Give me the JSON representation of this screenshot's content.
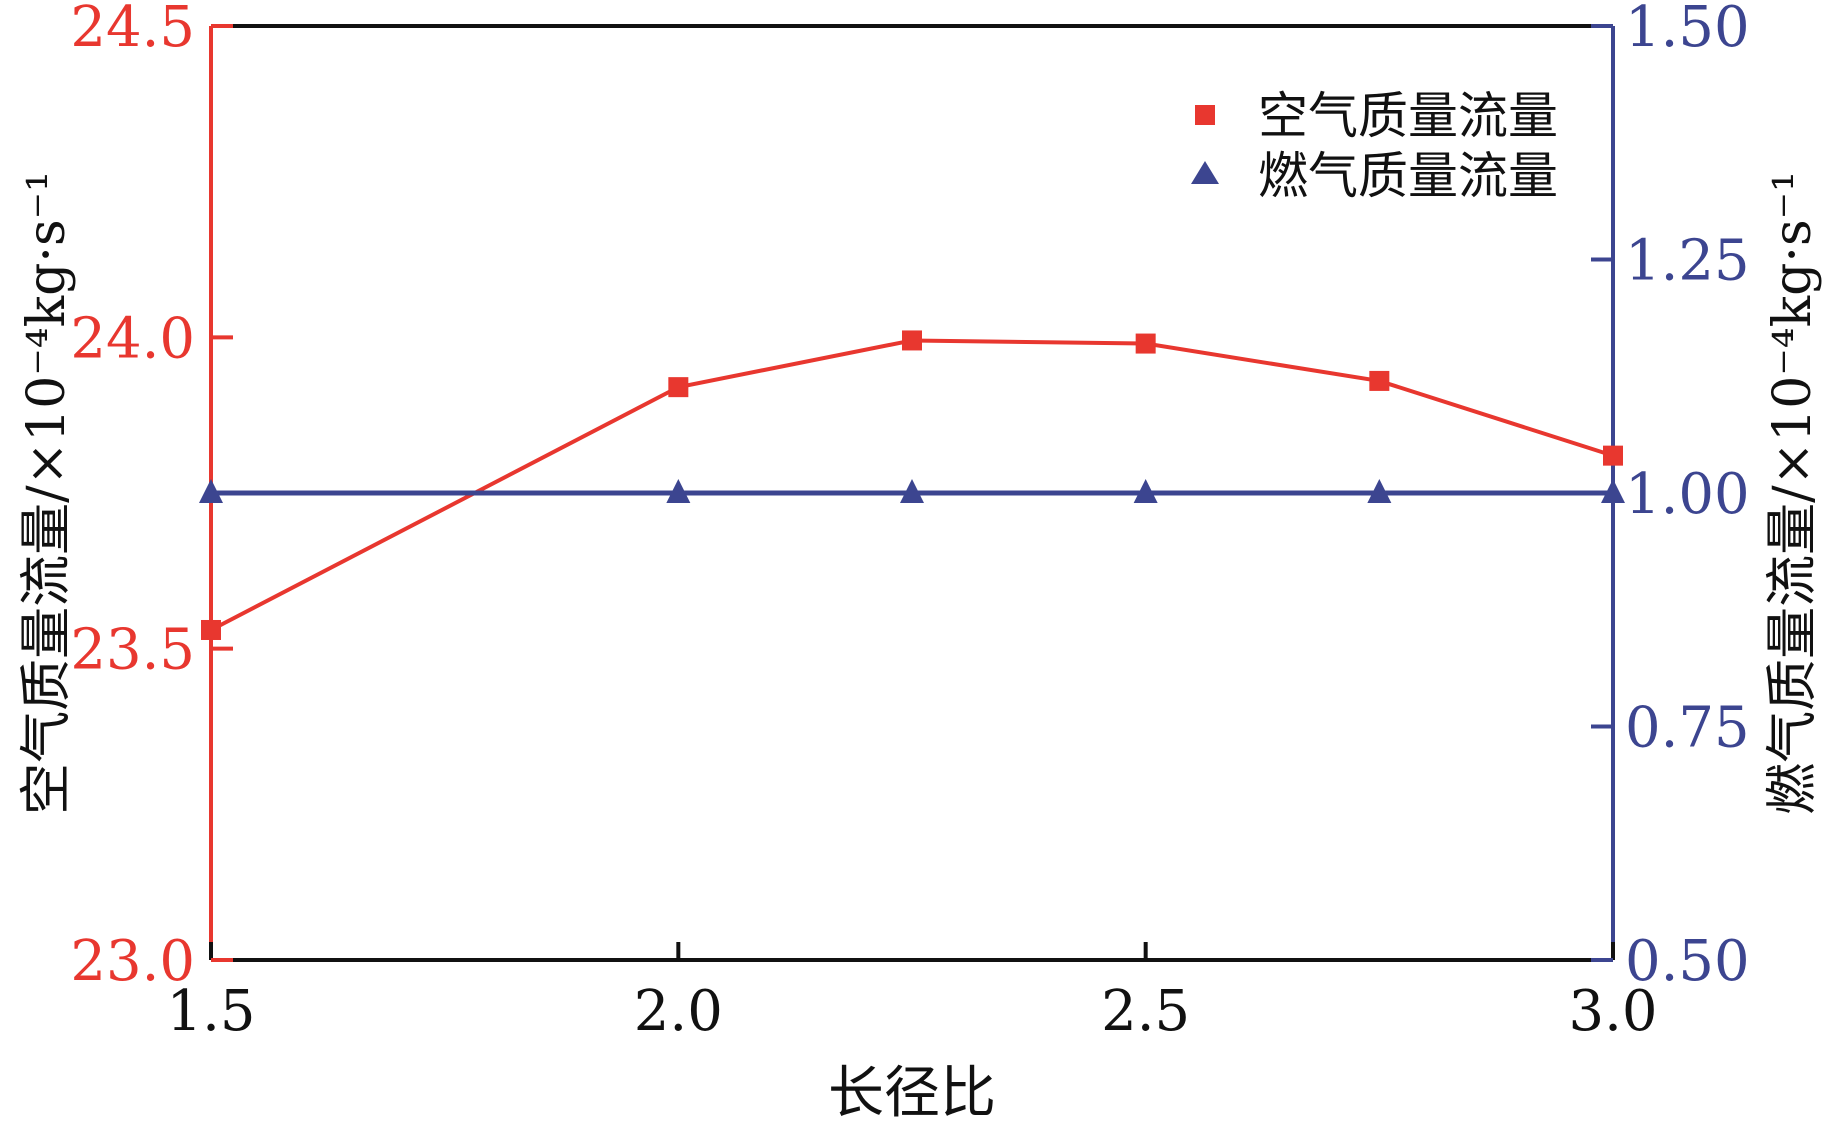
{
  "chart_data": {
    "type": "line",
    "xlabel": "长径比",
    "ylabel_left": "空气质量流量/×10⁻⁴kg·s⁻¹",
    "ylabel_right": "燃气质量流量/×10⁻⁴kg·s⁻¹",
    "x": [
      1.5,
      2.0,
      2.25,
      2.5,
      2.75,
      3.0
    ],
    "xlim": [
      1.5,
      3.0
    ],
    "xticks": [
      "1.5",
      "2.0",
      "2.5",
      "3.0"
    ],
    "ylim_left": [
      23.0,
      24.5
    ],
    "yticks_left": [
      "23.0",
      "23.5",
      "24.0",
      "24.5"
    ],
    "ylim_right": [
      0.5,
      1.5
    ],
    "yticks_right": [
      "0.50",
      "0.75",
      "1.00",
      "1.25",
      "1.50"
    ],
    "legend_position": "top-right",
    "grid": false,
    "series": [
      {
        "name": "空气质量流量",
        "axis": "left",
        "marker": "square",
        "color": "#e8372f",
        "values": [
          23.53,
          23.92,
          23.995,
          23.99,
          23.93,
          23.81
        ]
      },
      {
        "name": "燃气质量流量",
        "axis": "right",
        "marker": "triangle",
        "color": "#3c4590",
        "values": [
          1.0,
          1.0,
          1.0,
          1.0,
          1.0,
          1.0
        ]
      }
    ]
  }
}
